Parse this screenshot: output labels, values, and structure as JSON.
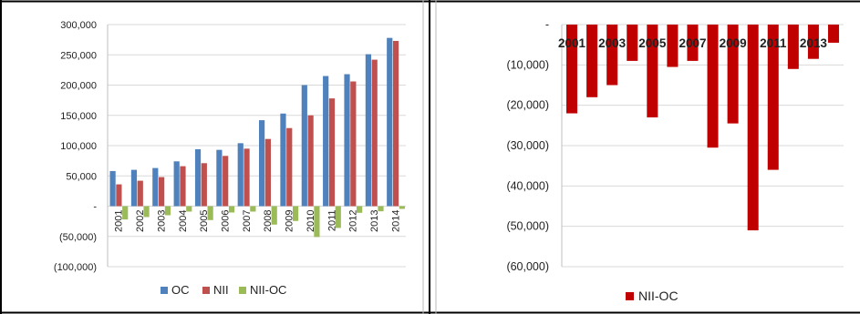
{
  "chart_data": [
    {
      "type": "bar",
      "title": "",
      "xlabel": "",
      "ylabel": "",
      "categories": [
        "2001",
        "2002",
        "2003",
        "2004",
        "2005",
        "2006",
        "2007",
        "2008",
        "2009",
        "2010",
        "2011",
        "2012",
        "2013",
        "2014"
      ],
      "series": [
        {
          "name": "OC",
          "color": "#4f81bd",
          "values": [
            58000,
            60000,
            63000,
            74000,
            94000,
            93000,
            104000,
            142000,
            153000,
            200000,
            215000,
            218000,
            251000,
            278000
          ]
        },
        {
          "name": "NII",
          "color": "#c0504d",
          "values": [
            36000,
            42000,
            48000,
            66000,
            71000,
            83000,
            95000,
            111000,
            129000,
            150000,
            178000,
            206000,
            242000,
            273000
          ]
        },
        {
          "name": "NII-OC",
          "color": "#9bbb59",
          "values": [
            -22000,
            -18000,
            -15000,
            -9000,
            -23000,
            -10500,
            -9000,
            -30500,
            -24500,
            -51000,
            -36000,
            -11000,
            -8500,
            -4500
          ]
        }
      ],
      "ylim": [
        -100000,
        300000
      ],
      "yticks": [
        "300,000",
        "250,000",
        "200,000",
        "150,000",
        "100,000",
        "50,000",
        "-",
        "(50,000)",
        "(100,000)"
      ],
      "yticks_values": [
        300000,
        250000,
        200000,
        150000,
        100000,
        50000,
        0,
        -50000,
        -100000
      ],
      "grid": true,
      "legend": "bottom"
    },
    {
      "type": "bar",
      "title": "",
      "xlabel": "",
      "ylabel": "",
      "categories": [
        "2001",
        "2002",
        "2003",
        "2004",
        "2005",
        "2006",
        "2007",
        "2008",
        "2009",
        "2010",
        "2011",
        "2012",
        "2013",
        "2014"
      ],
      "xtick_labels": [
        "2001",
        "2003",
        "2005",
        "2007",
        "2009",
        "2011",
        "2013"
      ],
      "series": [
        {
          "name": "NII-OC",
          "color": "#c00000",
          "values": [
            -22000,
            -18000,
            -15000,
            -9000,
            -23000,
            -10500,
            -9000,
            -30500,
            -24500,
            -51000,
            -36000,
            -11000,
            -8500,
            -4500
          ]
        }
      ],
      "ylim": [
        -60000,
        0
      ],
      "yticks": [
        "-",
        "(10,000)",
        "(20,000)",
        "(30,000)",
        "(40,000)",
        "(50,000)",
        "(60,000)"
      ],
      "yticks_values": [
        0,
        -10000,
        -20000,
        -30000,
        -40000,
        -50000,
        -60000
      ],
      "grid": true,
      "legend": "bottom"
    }
  ]
}
